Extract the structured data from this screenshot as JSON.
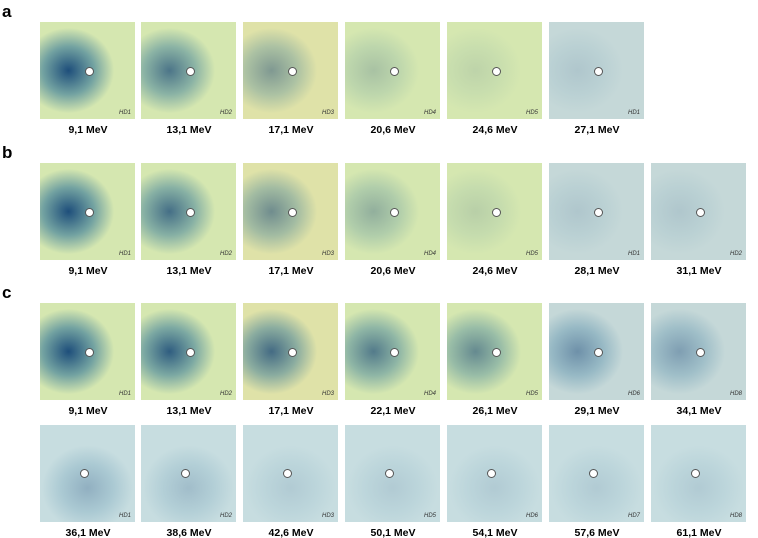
{
  "panels": [
    {
      "label": "a",
      "rows": [
        [
          {
            "caption": "9,1 MeV",
            "mark": "HD1"
          },
          {
            "caption": "13,1 MeV",
            "mark": "HD2"
          },
          {
            "caption": "17,1 MeV",
            "mark": "HD3"
          },
          {
            "caption": "20,6 MeV",
            "mark": "HD4"
          },
          {
            "caption": "24,6 MeV",
            "mark": "HD5"
          },
          {
            "caption": "27,1 MeV",
            "mark": "HD1"
          }
        ]
      ]
    },
    {
      "label": "b",
      "rows": [
        [
          {
            "caption": "9,1 MeV",
            "mark": "HD1"
          },
          {
            "caption": "13,1 MeV",
            "mark": "HD2"
          },
          {
            "caption": "17,1 MeV",
            "mark": "HD3"
          },
          {
            "caption": "20,6 MeV",
            "mark": "HD4"
          },
          {
            "caption": "24,6 MeV",
            "mark": "HD5"
          },
          {
            "caption": "28,1 MeV",
            "mark": "HD1"
          },
          {
            "caption": "31,1 MeV",
            "mark": "HD2"
          }
        ]
      ]
    },
    {
      "label": "c",
      "rows": [
        [
          {
            "caption": "9,1 MeV",
            "mark": "HD1"
          },
          {
            "caption": "13,1 MeV",
            "mark": "HD2"
          },
          {
            "caption": "17,1 MeV",
            "mark": "HD3"
          },
          {
            "caption": "22,1 MeV",
            "mark": "HD4"
          },
          {
            "caption": "26,1 MeV",
            "mark": "HD5"
          },
          {
            "caption": "29,1 MeV",
            "mark": "HD6"
          },
          {
            "caption": "34,1 MeV",
            "mark": "HD8"
          }
        ],
        [
          {
            "caption": "36,1 MeV",
            "mark": "HD1"
          },
          {
            "caption": "38,6 MeV",
            "mark": "HD2"
          },
          {
            "caption": "42,6 MeV",
            "mark": "HD3"
          },
          {
            "caption": "50,1 MeV",
            "mark": "HD5"
          },
          {
            "caption": "54,1 MeV",
            "mark": "HD6"
          },
          {
            "caption": "57,6 MeV",
            "mark": "HD7"
          },
          {
            "caption": "61,1 MeV",
            "mark": "HD8"
          }
        ]
      ]
    }
  ]
}
